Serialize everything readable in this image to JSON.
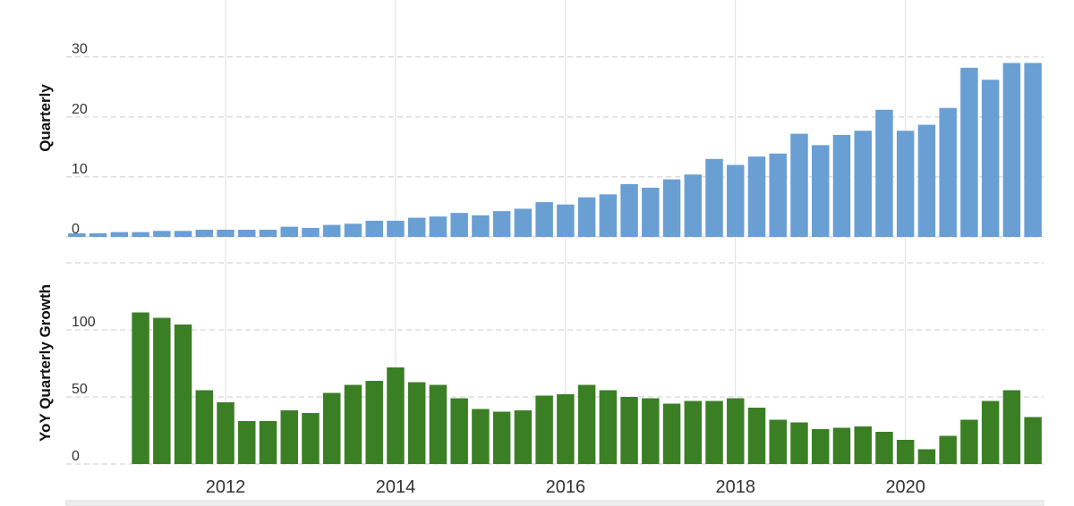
{
  "chart_data": [
    {
      "type": "bar",
      "y_label": "Quarterly",
      "color": "#6a9fd4",
      "x": [
        2010.25,
        2010.5,
        2010.75,
        2011,
        2011.25,
        2011.5,
        2011.75,
        2012,
        2012.25,
        2012.5,
        2012.75,
        2013,
        2013.25,
        2013.5,
        2013.75,
        2014,
        2014.25,
        2014.5,
        2014.75,
        2015,
        2015.25,
        2015.5,
        2015.75,
        2016,
        2016.25,
        2016.5,
        2016.75,
        2017,
        2017.25,
        2017.5,
        2017.75,
        2018,
        2018.25,
        2018.5,
        2018.75,
        2019,
        2019.25,
        2019.5,
        2019.75,
        2020,
        2020.25,
        2020.5,
        2020.75,
        2021,
        2021.25,
        2021.5
      ],
      "values": [
        0.6,
        0.6,
        0.8,
        0.8,
        1.0,
        1.0,
        1.2,
        1.2,
        1.2,
        1.2,
        1.7,
        1.5,
        2.0,
        2.2,
        2.7,
        2.7,
        3.2,
        3.4,
        4.0,
        3.6,
        4.3,
        4.7,
        5.8,
        5.4,
        6.6,
        7.1,
        8.8,
        8.2,
        9.6,
        10.4,
        13.0,
        12.0,
        13.4,
        13.9,
        17.2,
        15.3,
        17.0,
        17.7,
        21.2,
        17.7,
        18.7,
        21.5,
        28.2,
        26.2,
        29.0,
        29.0
      ],
      "xlim": [
        2010.125,
        2021.625
      ],
      "xticks": [
        2012,
        2014,
        2016,
        2018,
        2020
      ],
      "ylim": [
        0,
        39.5
      ],
      "yticks": [
        0,
        10,
        20,
        30
      ],
      "grid": true
    },
    {
      "type": "bar",
      "y_label": "YoY Quarterly Growth",
      "color": "#3a7f24",
      "x": [
        2010.25,
        2010.5,
        2010.75,
        2011,
        2011.25,
        2011.5,
        2011.75,
        2012,
        2012.25,
        2012.5,
        2012.75,
        2013,
        2013.25,
        2013.5,
        2013.75,
        2014,
        2014.25,
        2014.5,
        2014.75,
        2015,
        2015.25,
        2015.5,
        2015.75,
        2016,
        2016.25,
        2016.5,
        2016.75,
        2017,
        2017.25,
        2017.5,
        2017.75,
        2018,
        2018.25,
        2018.5,
        2018.75,
        2019,
        2019.25,
        2019.5,
        2019.75,
        2020,
        2020.25,
        2020.5,
        2020.75,
        2021,
        2021.25,
        2021.5
      ],
      "values": [
        null,
        null,
        null,
        113,
        109,
        104,
        55,
        46,
        32,
        32,
        40,
        38,
        53,
        59,
        62,
        72,
        61,
        59,
        49,
        41,
        39,
        40,
        51,
        52,
        59,
        55,
        50,
        49,
        45,
        47,
        47,
        49,
        42,
        33,
        31,
        26,
        27,
        28,
        24,
        18,
        11,
        21,
        33,
        47,
        55,
        35
      ],
      "xlim": [
        2010.125,
        2021.625
      ],
      "xticks": [
        2012,
        2014,
        2016,
        2018,
        2020
      ],
      "ylim": [
        0,
        150
      ],
      "yticks": [
        0,
        50,
        100
      ],
      "grid": true
    }
  ]
}
